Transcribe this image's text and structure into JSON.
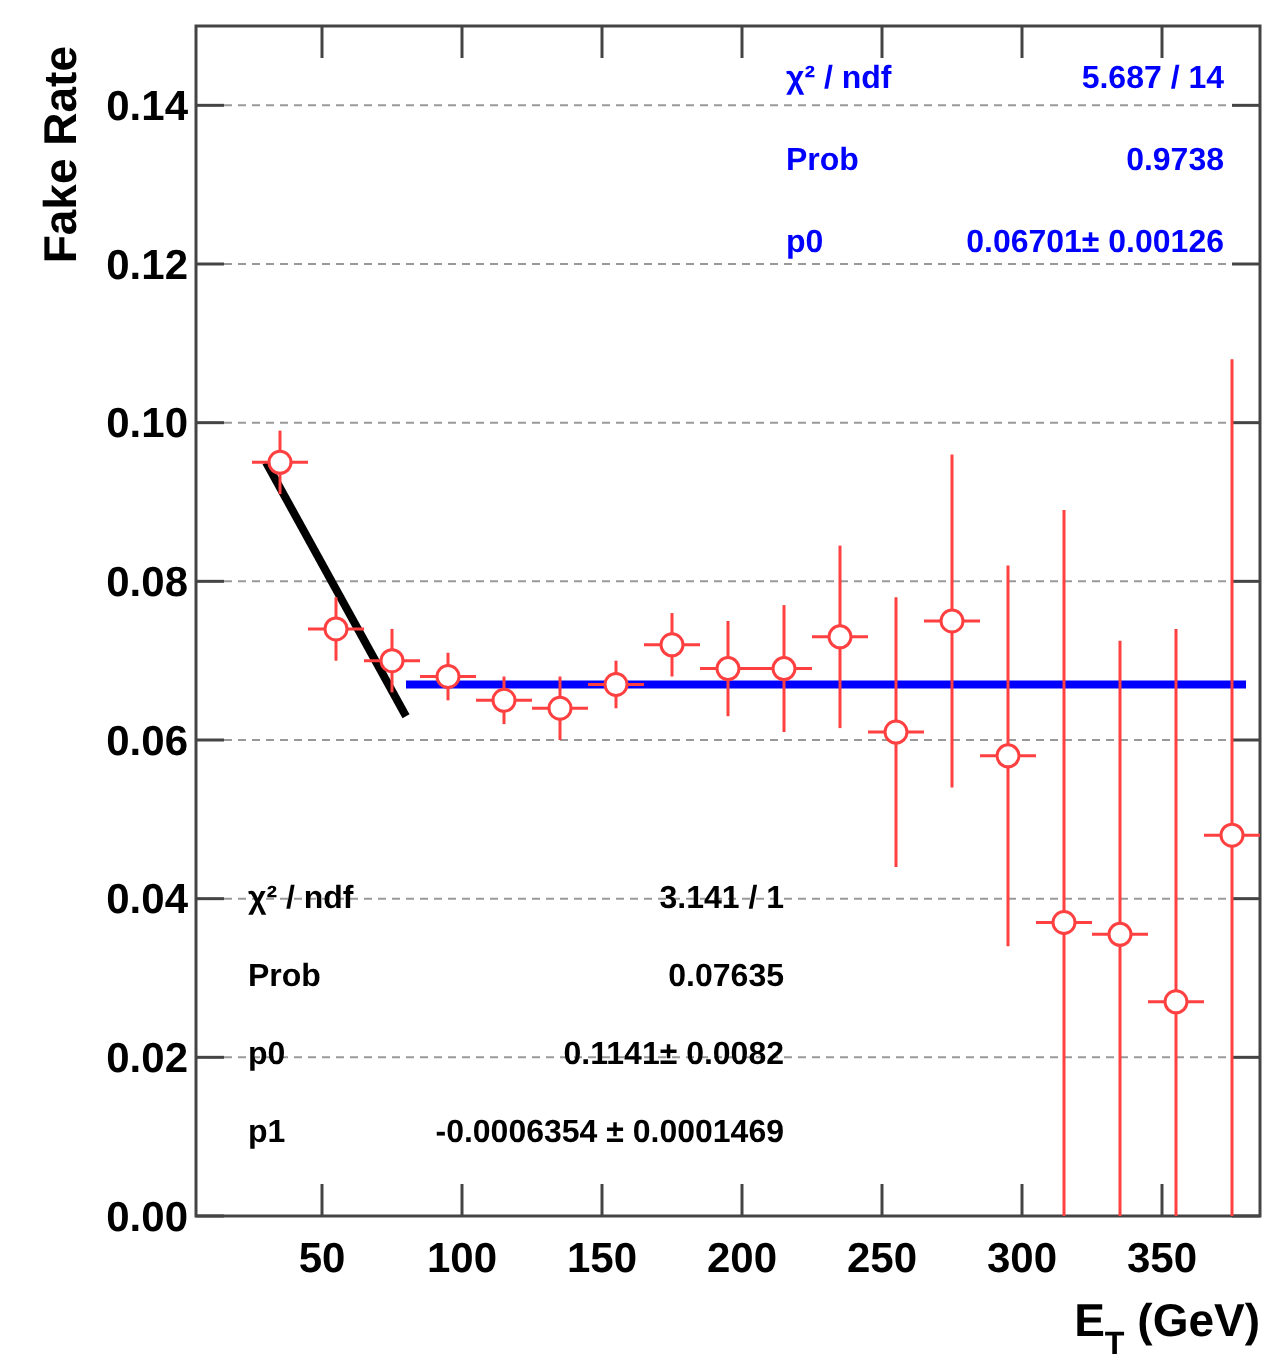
{
  "chart_data": {
    "type": "scatter",
    "ylabel": "Fake Rate",
    "xlabel": "E$_{T}$ (GeV)",
    "xlim": [
      5,
      385
    ],
    "xticks": [
      50,
      100,
      150,
      200,
      250,
      300,
      350
    ],
    "ylim": [
      0,
      0.15
    ],
    "yticks": [
      {
        "value": 0,
        "label": "0.00"
      },
      0.02,
      0.04,
      0.06,
      0.08,
      {
        "value": 0.1,
        "label": "0.10"
      },
      0.12,
      0.14
    ],
    "grid": "y",
    "marker": "circle",
    "series": [
      {
        "color": "#ff4040",
        "x": [
          35,
          55,
          75,
          95,
          115,
          135,
          155,
          175,
          195,
          215,
          235,
          255,
          275,
          295,
          315,
          335,
          355,
          375
        ],
        "values": [
          0.095,
          0.074,
          0.07,
          0.068,
          0.065,
          0.064,
          0.067,
          0.072,
          0.069,
          0.069,
          0.073,
          0.061,
          0.075,
          0.058,
          0.037,
          0.0355,
          0.027,
          0.048
        ],
        "errors": [
          0.004,
          0.004,
          0.004,
          0.003,
          0.003,
          0.004,
          0.003,
          0.004,
          0.006,
          0.008,
          0.0115,
          0.017,
          0.021,
          0.024,
          [
            0,
            0.089
          ],
          [
            0,
            0.0725
          ],
          [
            0,
            0.074
          ],
          [
            0,
            0.108
          ]
        ],
        "xerrors": [
          10,
          10,
          10,
          10,
          10,
          10,
          10,
          10,
          10,
          10,
          10,
          10,
          10,
          10,
          10,
          10,
          10,
          10
        ]
      },
      {
        "type": "line",
        "color": "#000000",
        "x": [
          30,
          80
        ],
        "values": [
          0.095,
          0.063
        ],
        "line_style": "solid",
        "marker": "none"
      },
      {
        "type": "line",
        "color": "#0000ff",
        "x": [
          80,
          380
        ],
        "values": [
          0.067,
          0.067
        ],
        "line_style": "solid",
        "marker": "none"
      }
    ],
    "annotations": [
      "χ² / ndf",
      "5.687 / 14",
      "Prob",
      "0.9738",
      "p0",
      "0.06701± 0.00126",
      "χ² / ndf",
      "3.141 / 1",
      "Prob",
      "0.07635",
      "p0",
      "0.1141± 0.0082",
      "p1",
      "-0.0006354 ± 0.0001469"
    ]
  }
}
